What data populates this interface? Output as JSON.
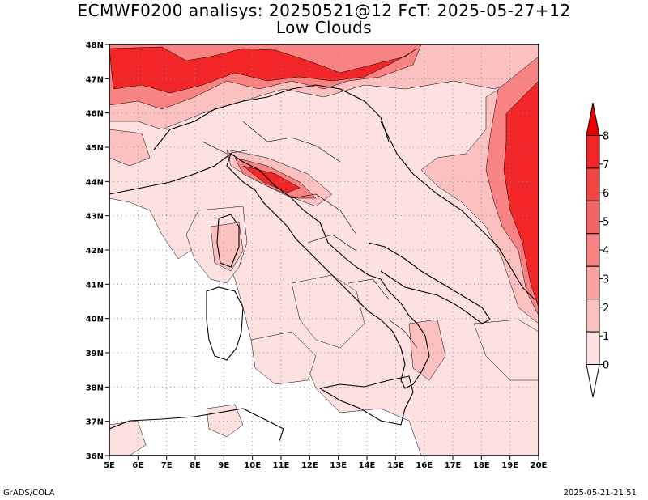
{
  "title_line1": "ECMWF0200 analisys: 20250521@12 FcT: 2025-05-27+12",
  "title_line2": "Low Clouds",
  "footer_left": "GrADS/COLA",
  "footer_right": "2025-05-21-21:51",
  "map": {
    "lon_range": [
      5,
      20
    ],
    "lat_range": [
      36,
      48
    ],
    "lon_ticks": [
      "5E",
      "6E",
      "7E",
      "8E",
      "9E",
      "10E",
      "11E",
      "12E",
      "13E",
      "14E",
      "15E",
      "16E",
      "17E",
      "18E",
      "19E",
      "20E"
    ],
    "lat_ticks": [
      "36N",
      "37N",
      "38N",
      "39N",
      "40N",
      "41N",
      "42N",
      "43N",
      "44N",
      "45N",
      "46N",
      "47N",
      "48N"
    ],
    "grid": "dotted"
  },
  "colorbar": {
    "levels": [
      "0",
      "1",
      "2",
      "3",
      "4",
      "5",
      "6",
      "7",
      "8"
    ],
    "colors": [
      "#ffffff",
      "#fde0e0",
      "#fbc1c1",
      "#f9a2a2",
      "#f78383",
      "#f56464",
      "#f44545",
      "#f22626",
      "#ee0000"
    ]
  }
}
